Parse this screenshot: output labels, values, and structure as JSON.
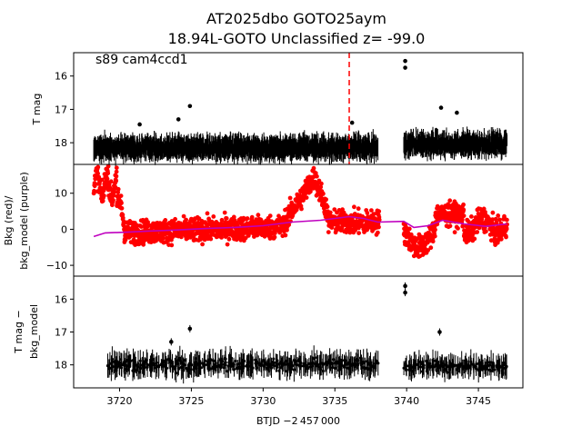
{
  "figure": {
    "title_line1": "AT2025dbo  GOTO25aym",
    "title_line2": "18.94L-GOTO Unclassified z= -99.0",
    "annotation": "s89 cam4ccd1",
    "xlabel": "BTJD −2 457 000"
  },
  "chart_data": [
    {
      "type": "scatter",
      "panel": "top",
      "ylabel": "T mag",
      "ylim": [
        18.65,
        15.3
      ],
      "yticks": [
        "16",
        "17",
        "18"
      ],
      "ytick_values": [
        16,
        17,
        18
      ],
      "xlim": [
        3716.8,
        3748.1
      ],
      "marker_line_x": 3736.0,
      "segments": [
        {
          "x_start": 3718.2,
          "x_end": 3738.0,
          "mag_mean": 18.15,
          "mag_scatter": 0.18
        },
        {
          "x_start": 3739.8,
          "x_end": 3747.0,
          "mag_mean": 18.05,
          "mag_scatter": 0.2
        }
      ],
      "outliers": [
        {
          "x": 3724.9,
          "y": 16.9
        },
        {
          "x": 3724.1,
          "y": 17.3
        },
        {
          "x": 3739.9,
          "y": 15.55
        },
        {
          "x": 3739.9,
          "y": 15.75
        },
        {
          "x": 3742.4,
          "y": 16.95
        },
        {
          "x": 3743.5,
          "y": 17.1
        },
        {
          "x": 3721.4,
          "y": 17.45
        },
        {
          "x": 3736.2,
          "y": 17.4
        }
      ],
      "colors": {
        "points": "#000000",
        "marker_line": "#ff0000"
      }
    },
    {
      "type": "scatter",
      "panel": "middle",
      "ylabel_line1": "Bkg (red)/",
      "ylabel_line2": "bkg_model (purple)",
      "ylim": [
        -13,
        18
      ],
      "yticks": [
        "−10",
        "0",
        "10"
      ],
      "ytick_values": [
        -10,
        0,
        10
      ],
      "xlim": [
        3716.8,
        3748.1
      ],
      "model_curve": [
        {
          "x": 3718.2,
          "y": -2.0
        },
        {
          "x": 3719.0,
          "y": -1.0
        },
        {
          "x": 3720.5,
          "y": -0.8
        },
        {
          "x": 3722.0,
          "y": -0.5
        },
        {
          "x": 3724.0,
          "y": -0.2
        },
        {
          "x": 3726.0,
          "y": 0.2
        },
        {
          "x": 3728.0,
          "y": 0.5
        },
        {
          "x": 3730.0,
          "y": 1.0
        },
        {
          "x": 3732.0,
          "y": 2.0
        },
        {
          "x": 3734.0,
          "y": 2.5
        },
        {
          "x": 3735.0,
          "y": 3.0
        },
        {
          "x": 3736.0,
          "y": 3.5
        },
        {
          "x": 3737.0,
          "y": 3.0
        },
        {
          "x": 3738.0,
          "y": 2.0
        },
        {
          "x": 3739.8,
          "y": 2.2
        },
        {
          "x": 3740.5,
          "y": 0.5
        },
        {
          "x": 3741.5,
          "y": 1.0
        },
        {
          "x": 3742.5,
          "y": 2.5
        },
        {
          "x": 3744.0,
          "y": 1.5
        },
        {
          "x": 3745.5,
          "y": 0.8
        },
        {
          "x": 3747.0,
          "y": 1.5
        }
      ],
      "colors": {
        "background": "#ff0000",
        "model": "#bf00bf"
      }
    },
    {
      "type": "scatter",
      "panel": "bottom",
      "ylabel_line1": "T mag −",
      "ylabel_line2": "bkg_model",
      "ylim": [
        18.7,
        15.3
      ],
      "yticks": [
        "16",
        "17",
        "18"
      ],
      "ytick_values": [
        16,
        17,
        18
      ],
      "xlim": [
        3716.8,
        3748.1
      ],
      "xticks": [
        "3720",
        "3725",
        "3730",
        "3735",
        "3740",
        "3745"
      ],
      "xtick_values": [
        3720,
        3725,
        3730,
        3735,
        3740,
        3745
      ],
      "outliers": [
        {
          "x": 3724.9,
          "y": 16.9
        },
        {
          "x": 3723.6,
          "y": 17.3
        },
        {
          "x": 3739.9,
          "y": 15.6
        },
        {
          "x": 3739.9,
          "y": 15.8
        },
        {
          "x": 3742.3,
          "y": 17.0
        }
      ],
      "colors": {
        "points": "#000000"
      }
    }
  ]
}
